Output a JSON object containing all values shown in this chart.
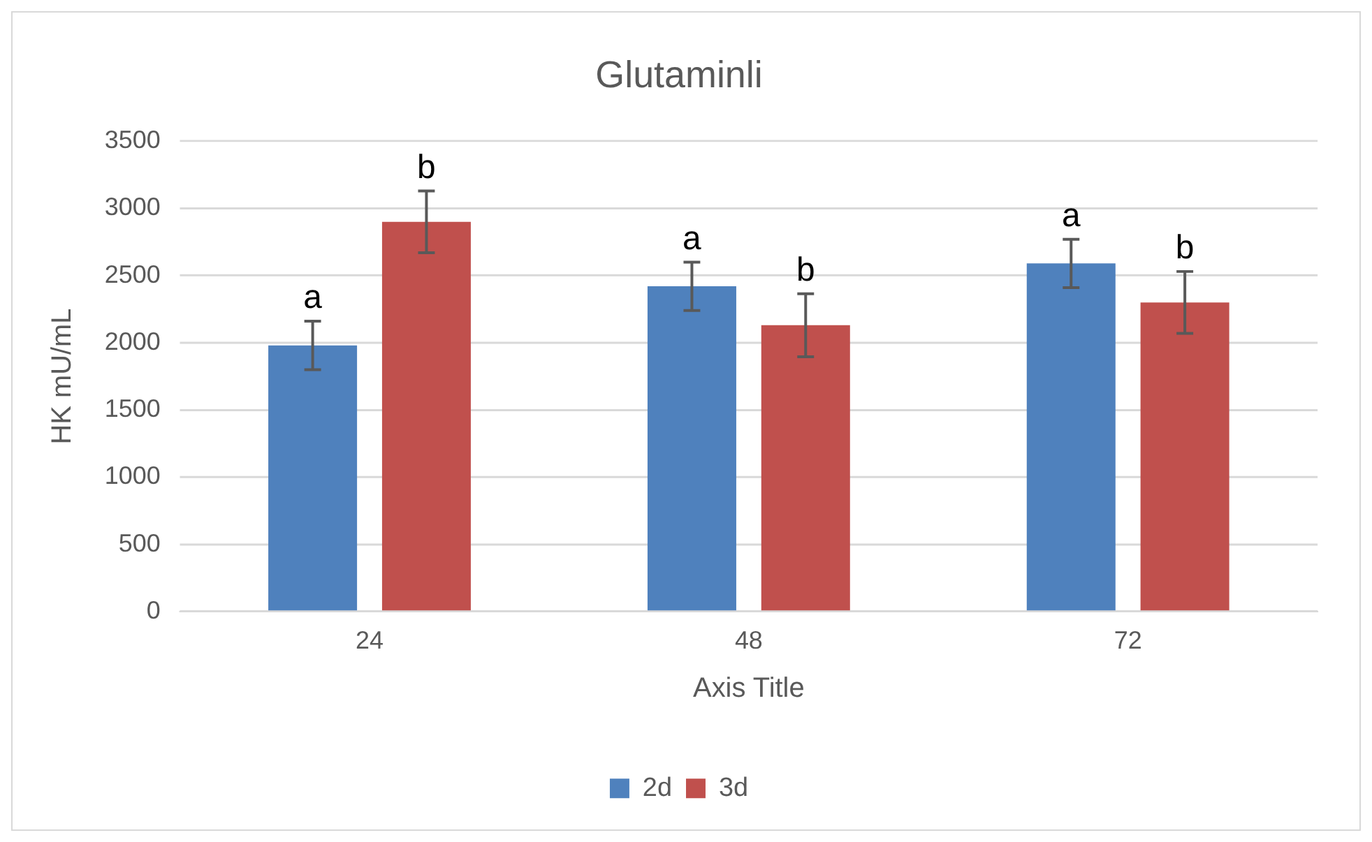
{
  "chart_data": {
    "type": "bar",
    "title": "Glutaminli",
    "xlabel": "Axis Title",
    "ylabel": "HK mU/mL",
    "categories": [
      "24",
      "48",
      "72"
    ],
    "series": [
      {
        "name": "2d",
        "color": "#4f81bd",
        "values": [
          1980,
          2420,
          2590
        ],
        "errors": [
          180,
          180,
          180
        ],
        "value_labels": [
          "a",
          "a",
          "a"
        ]
      },
      {
        "name": "3d",
        "color": "#c0504d",
        "values": [
          2900,
          2130,
          2300
        ],
        "errors": [
          230,
          235,
          230
        ],
        "value_labels": [
          "b",
          "b",
          "b"
        ]
      }
    ],
    "ylim": [
      0,
      3500
    ],
    "yticks": [
      0,
      500,
      1000,
      1500,
      2000,
      2500,
      3000,
      3500
    ],
    "grid": "y",
    "legend": "bottom"
  }
}
